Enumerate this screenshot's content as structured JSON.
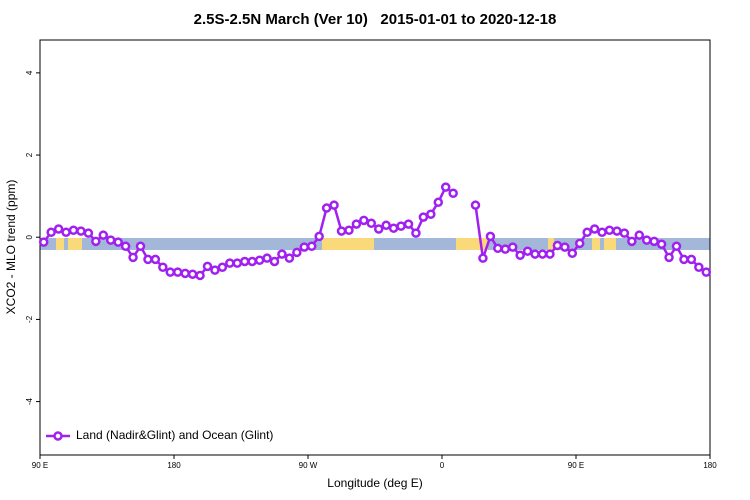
{
  "chart_data": {
    "type": "line",
    "title": "2.5S-2.5N March (Ver 10)   2015-01-01 to 2020-12-18",
    "xlabel": "Longitude (deg E)",
    "ylabel": "XCO2 - MLO trend (ppm)",
    "xlim": [
      90,
      540
    ],
    "xticks": [
      {
        "value": 90,
        "label": "90 E"
      },
      180,
      {
        "value": 270,
        "label": "90 W"
      },
      {
        "value": 360,
        "label": "0"
      },
      {
        "value": 450,
        "label": "90 E"
      },
      {
        "value": 540,
        "label": "180"
      }
    ],
    "ylim": [
      -5.3,
      4.8
    ],
    "yticks": [
      -4,
      -2,
      0,
      2,
      4
    ],
    "legend": "bottom-left",
    "x": [
      92.5,
      97.5,
      102.5,
      107.5,
      112.5,
      117.5,
      122.5,
      127.5,
      132.5,
      137.5,
      142.5,
      147.5,
      152.5,
      157.5,
      162.5,
      167.5,
      172.5,
      177.5,
      182.5,
      187.5,
      192.5,
      197.5,
      202.5,
      207.5,
      212.5,
      217.5,
      222.5,
      227.5,
      232.5,
      237.5,
      242.5,
      247.5,
      252.5,
      257.5,
      262.5,
      267.5,
      272.5,
      277.5,
      282.5,
      287.5,
      292.5,
      297.5,
      302.5,
      307.5,
      312.5,
      317.5,
      322.5,
      327.5,
      332.5,
      337.5,
      342.5,
      347.5,
      352.5,
      357.5,
      362.5,
      367.5,
      372.5,
      377.5,
      382.5,
      387.5,
      392.5,
      397.5,
      402.5,
      407.5,
      412.5,
      417.5,
      422.5,
      427.5,
      432.5,
      437.5,
      442.5,
      447.5,
      452.5,
      457.5,
      462.5,
      467.5,
      472.5,
      477.5,
      482.5,
      487.5,
      492.5,
      497.5,
      502.5,
      507.5,
      512.5,
      517.5,
      522.5,
      527.5,
      532.5,
      537.5
    ],
    "series": [
      {
        "name": "Land (Nadir&Glint) and Ocean (Glint)",
        "color": "#a020f0",
        "values": [
          -0.12,
          0.12,
          0.2,
          0.12,
          0.17,
          0.15,
          0.1,
          -0.1,
          0.05,
          -0.07,
          -0.12,
          -0.22,
          -0.49,
          -0.22,
          -0.54,
          -0.54,
          -0.73,
          -0.85,
          -0.85,
          -0.88,
          -0.9,
          -0.93,
          -0.71,
          -0.8,
          -0.73,
          -0.63,
          -0.63,
          -0.59,
          -0.59,
          -0.56,
          -0.51,
          -0.59,
          -0.41,
          -0.51,
          -0.37,
          -0.24,
          -0.22,
          0.02,
          0.71,
          0.78,
          0.15,
          0.17,
          0.32,
          0.41,
          0.34,
          0.2,
          0.29,
          0.22,
          0.27,
          0.32,
          0.1,
          0.49,
          0.56,
          0.85,
          1.22,
          1.07,
          null,
          null,
          0.78,
          -0.51,
          0.02,
          -0.27,
          -0.29,
          -0.24,
          -0.44,
          -0.34,
          -0.41,
          -0.41,
          -0.41,
          -0.2,
          -0.24,
          -0.39,
          -0.15,
          0.12,
          0.2,
          0.12,
          0.17,
          0.15,
          0.1,
          -0.1,
          0.05,
          -0.07,
          -0.1,
          -0.17,
          -0.49,
          -0.22,
          -0.54,
          -0.54,
          -0.73,
          -0.85
        ]
      }
    ]
  }
}
